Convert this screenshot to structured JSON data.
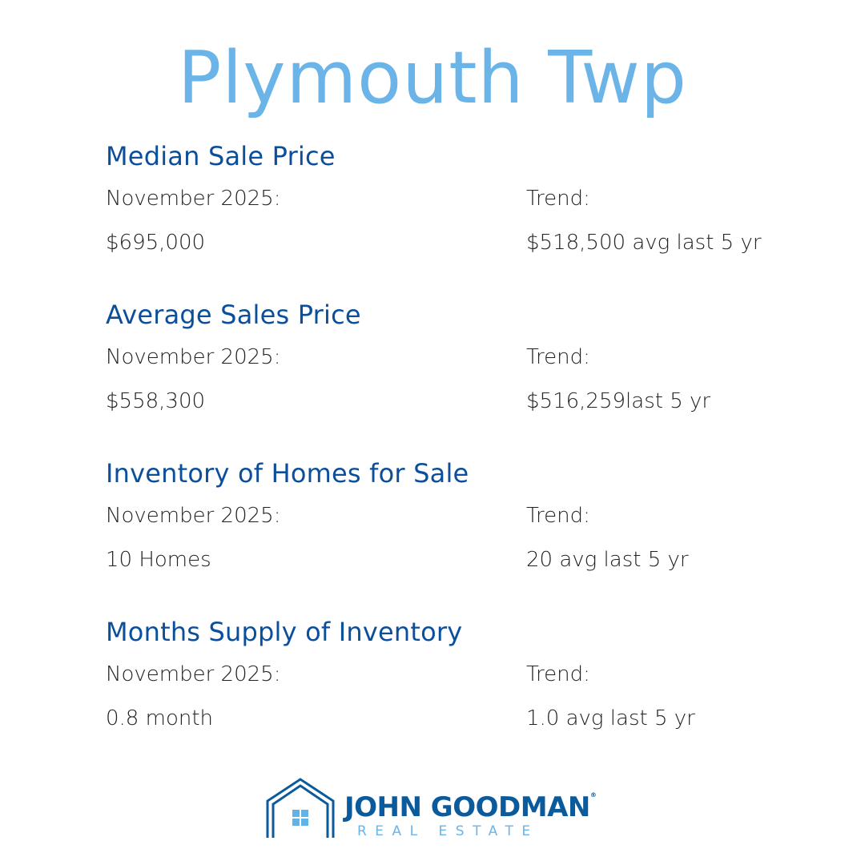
{
  "title": "Plymouth Twp",
  "sections": [
    {
      "heading": "Median Sale Price",
      "period_label": "November 2025:",
      "value": "$695,000",
      "trend_label": "Trend:",
      "trend_value": "$518,500 avg last 5 yr"
    },
    {
      "heading": "Average Sales Price",
      "period_label": "November 2025:",
      "value": "$558,300",
      "trend_label": "Trend:",
      "trend_value": "$516,259last 5 yr"
    },
    {
      "heading": "Inventory of Homes for Sale",
      "period_label": "November 2025:",
      "value": "10 Homes",
      "trend_label": "Trend:",
      "trend_value": "20 avg last 5 yr"
    },
    {
      "heading": "Months Supply of Inventory",
      "period_label": "November 2025:",
      "value": "0.8 month",
      "trend_label": "Trend:",
      "trend_value": "1.0 avg last 5 yr"
    }
  ],
  "logo": {
    "name": "JOHN GOODMAN",
    "registered": "®",
    "subtitle": "REAL ESTATE"
  },
  "colors": {
    "title": "#6bb4e8",
    "heading": "#0b4f9c",
    "body": "#222222",
    "logo_dark": "#0b5a9c",
    "logo_light": "#6bb4e8"
  }
}
